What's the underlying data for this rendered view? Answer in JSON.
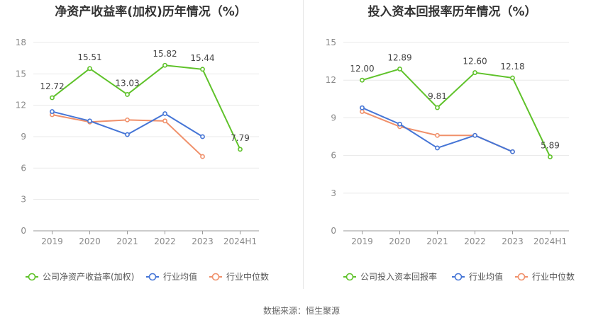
{
  "source_label": "数据来源：恒生聚源",
  "colors": {
    "company": "#5fc22a",
    "industry_avg": "#4575d6",
    "industry_median": "#f0906a"
  },
  "chart_data": [
    {
      "type": "line",
      "title": "净资产收益率(加权)历年情况（%）",
      "categories": [
        "2019",
        "2020",
        "2021",
        "2022",
        "2023",
        "2024H1"
      ],
      "ylim": [
        0,
        18
      ],
      "yticks": [
        0,
        3,
        6,
        9,
        12,
        15,
        18
      ],
      "grid": true,
      "legend": "bottom",
      "series": [
        {
          "name": "公司净资产收益率(加权)",
          "values": [
            12.72,
            15.51,
            13.03,
            15.82,
            15.44,
            7.79
          ],
          "labels": [
            "12.72",
            "15.51",
            "13.03",
            "15.82",
            "15.44",
            "7.79"
          ]
        },
        {
          "name": "行业均值",
          "values": [
            11.4,
            10.5,
            9.2,
            11.2,
            9.0,
            null
          ]
        },
        {
          "name": "行业中位数",
          "values": [
            11.1,
            10.4,
            10.6,
            10.5,
            7.1,
            null
          ]
        }
      ]
    },
    {
      "type": "line",
      "title": "投入资本回报率历年情况（%）",
      "categories": [
        "2019",
        "2020",
        "2021",
        "2022",
        "2023",
        "2024H1"
      ],
      "ylim": [
        0,
        15
      ],
      "yticks": [
        0,
        3,
        6,
        9,
        12,
        15
      ],
      "grid": true,
      "legend": "bottom",
      "series": [
        {
          "name": "公司投入资本回报率",
          "values": [
            12.0,
            12.89,
            9.81,
            12.6,
            12.18,
            5.89
          ],
          "labels": [
            "12.00",
            "12.89",
            "9.81",
            "12.60",
            "12.18",
            "5.89"
          ]
        },
        {
          "name": "行业均值",
          "values": [
            9.8,
            8.5,
            6.6,
            7.6,
            6.3,
            null
          ]
        },
        {
          "name": "行业中位数",
          "values": [
            9.5,
            8.3,
            7.6,
            7.6,
            6.3,
            null
          ]
        }
      ]
    }
  ]
}
